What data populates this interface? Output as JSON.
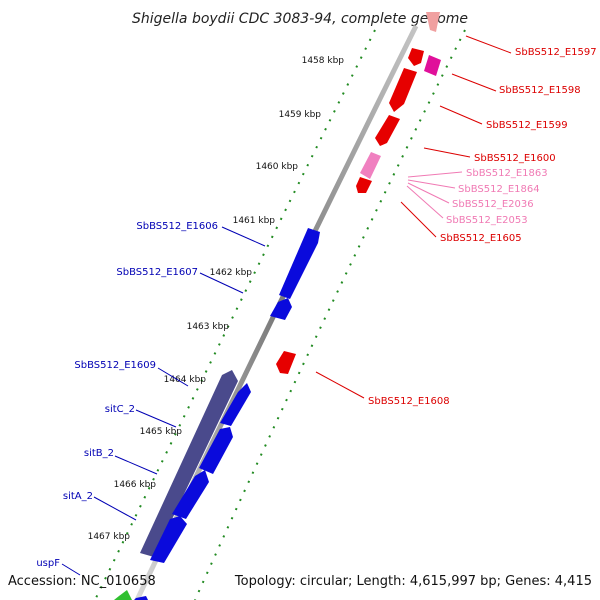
{
  "title": "Shigella boydii CDC 3083-94, complete genome",
  "footer": {
    "accession": "Accession: NC_010658",
    "summary": "Topology: circular; Length: 4,615,997 bp; Genes: 4,415"
  },
  "colors": {
    "forward_cds": "#0a0adc",
    "reverse_cds": "#e60000",
    "reverse_cds_pale": "#f06070",
    "reverse_small": "#f080c0",
    "operon": "#4a4a8c",
    "backbone": "#8a8a8a",
    "tick_dots": "#228b22",
    "label_forward": "#0000b4",
    "label_reverse": "#dc0000",
    "label_pink": "#f07ab4",
    "magenta": "#e0109a"
  },
  "ticks": [
    "1458 kbp",
    "1459 kbp",
    "1460 kbp",
    "1461 kbp",
    "1462 kbp",
    "1463 kbp",
    "1464 kbp",
    "1465 kbp",
    "1466 kbp",
    "1467 kbp"
  ],
  "labels_forward": [
    "SbBS512_E1606",
    "SbBS512_E1607",
    "SbBS512_E1609",
    "sitC_2",
    "sitB_2",
    "sitA_2",
    "uspF"
  ],
  "labels_reverse": [
    "SbBS512_E1597",
    "SbBS512_E1598",
    "SbBS512_E1599",
    "SbBS512_E1600",
    "SbBS512_E1605",
    "SbBS512_E1608"
  ],
  "labels_pink": [
    "SbBS512_E1863",
    "SbBS512_E1864",
    "SbBS512_E2036",
    "SbBS512_E2053"
  ]
}
